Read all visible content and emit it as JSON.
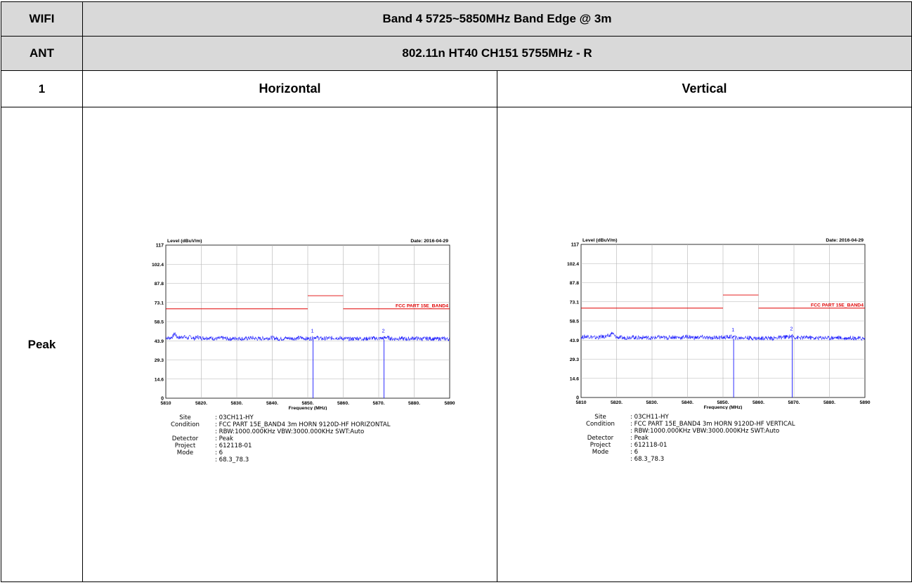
{
  "header": {
    "rows": [
      {
        "label": "WIFI",
        "value": "Band 4 5725~5850MHz Band Edge @ 3m"
      },
      {
        "label": "ANT",
        "value": "802.11n HT40 CH151 5755MHz - R"
      }
    ],
    "col_row": {
      "label": "1",
      "left": "Horizontal",
      "right": "Vertical"
    },
    "detector_row_label": "Peak"
  },
  "chart_data": [
    {
      "type": "line",
      "title": "",
      "ylabel": "Level (dBuV/m)",
      "xlabel": "Frequency (MHz)",
      "date_label": "Date: 2016-04-29",
      "xlim": [
        5810,
        5890
      ],
      "ylim": [
        0,
        117
      ],
      "y_ticks": [
        "0",
        "14.6",
        "29.3",
        "43.9",
        "58.5",
        "73.1",
        "87.8",
        "102.4",
        "117"
      ],
      "x_ticks": [
        "5810",
        "5820.",
        "5830.",
        "5840.",
        "5850.",
        "5860.",
        "5870.",
        "5880.",
        "5890"
      ],
      "limit_line": {
        "name": "FCC PART 15E_BAND4",
        "color": "#e00000",
        "segments": [
          {
            "x": [
              5810,
              5850
            ],
            "y": 68.3
          },
          {
            "x": [
              5850,
              5860
            ],
            "y": 78.3
          },
          {
            "x": [
              5860,
              5890
            ],
            "y": 68.3
          }
        ]
      },
      "trace_color": "#1a1aff",
      "trace": [
        [
          5810,
          46.5
        ],
        [
          5811,
          45.8
        ],
        [
          5812,
          47.2
        ],
        [
          5812.6,
          50.0
        ],
        [
          5813,
          47.0
        ],
        [
          5814,
          46.2
        ],
        [
          5815,
          47.3
        ],
        [
          5816,
          45.8
        ],
        [
          5817,
          46.9
        ],
        [
          5818,
          45.6
        ],
        [
          5819,
          46.8
        ],
        [
          5820,
          45.9
        ],
        [
          5822,
          46.2
        ],
        [
          5824,
          45.4
        ],
        [
          5826,
          46.0
        ],
        [
          5828,
          45.2
        ],
        [
          5830,
          45.9
        ],
        [
          5832,
          45.3
        ],
        [
          5834,
          46.1
        ],
        [
          5836,
          45.4
        ],
        [
          5838,
          45.8
        ],
        [
          5840,
          46.2
        ],
        [
          5842,
          45.3
        ],
        [
          5844,
          45.9
        ],
        [
          5846,
          45.6
        ],
        [
          5848,
          46.1
        ],
        [
          5850,
          45.4
        ],
        [
          5851.5,
          46.0
        ],
        [
          5852,
          46.8
        ],
        [
          5854,
          45.4
        ],
        [
          5856,
          45.8
        ],
        [
          5858,
          46.2
        ],
        [
          5860,
          45.6
        ],
        [
          5862,
          45.2
        ],
        [
          5864,
          45.8
        ],
        [
          5866,
          45.3
        ],
        [
          5868,
          45.9
        ],
        [
          5870,
          45.6
        ],
        [
          5871.5,
          45.9
        ],
        [
          5872,
          46.6
        ],
        [
          5874,
          45.3
        ],
        [
          5876,
          45.7
        ],
        [
          5878,
          45.2
        ],
        [
          5880,
          45.9
        ],
        [
          5882,
          45.3
        ],
        [
          5884,
          45.7
        ],
        [
          5886,
          45.2
        ],
        [
          5888,
          45.6
        ],
        [
          5890,
          45.1
        ]
      ],
      "markers": [
        {
          "label": "1",
          "x": 5851.5,
          "y": 46.0
        },
        {
          "label": "2",
          "x": 5871.5,
          "y": 45.9
        }
      ],
      "info": [
        {
          "key": "Site",
          "value": ": 03CH11-HY"
        },
        {
          "key": "Condition",
          "value": ": FCC PART 15E_BAND4 3m HORN 9120D-HF HORIZONTAL"
        },
        {
          "key": "",
          "value": ": RBW:1000.000KHz VBW:3000.000KHz SWT:Auto"
        },
        {
          "key": "Detector",
          "value": ": Peak"
        },
        {
          "key": "Project",
          "value": ": 612118-01"
        },
        {
          "key": "Mode",
          "value": ": 6"
        },
        {
          "key": "",
          "value": ": 68.3_78.3"
        }
      ]
    },
    {
      "type": "line",
      "title": "",
      "ylabel": "Level (dBuV/m)",
      "xlabel": "Frequency (MHz)",
      "date_label": "Date: 2016-04-29",
      "xlim": [
        5810,
        5890
      ],
      "ylim": [
        0,
        117
      ],
      "y_ticks": [
        "0",
        "14.6",
        "29.3",
        "43.9",
        "58.5",
        "73.1",
        "87.8",
        "102.4",
        "117"
      ],
      "x_ticks": [
        "5810",
        "5820.",
        "5830.",
        "5840.",
        "5850.",
        "5860.",
        "5870.",
        "5880.",
        "5890"
      ],
      "limit_line": {
        "name": "FCC PART 15E_BAND4",
        "color": "#e00000",
        "segments": [
          {
            "x": [
              5810,
              5850
            ],
            "y": 68.3
          },
          {
            "x": [
              5850,
              5860
            ],
            "y": 78.3
          },
          {
            "x": [
              5860,
              5890
            ],
            "y": 68.3
          }
        ]
      },
      "trace_color": "#1a1aff",
      "trace": [
        [
          5810,
          46.0
        ],
        [
          5812,
          46.8
        ],
        [
          5814,
          45.7
        ],
        [
          5816,
          46.4
        ],
        [
          5818,
          47.0
        ],
        [
          5818.8,
          49.5
        ],
        [
          5819.5,
          46.8
        ],
        [
          5820,
          46.1
        ],
        [
          5822,
          45.5
        ],
        [
          5824,
          46.3
        ],
        [
          5826,
          45.6
        ],
        [
          5828,
          46.0
        ],
        [
          5830,
          45.4
        ],
        [
          5832,
          46.1
        ],
        [
          5834,
          45.5
        ],
        [
          5836,
          46.3
        ],
        [
          5838,
          45.7
        ],
        [
          5840,
          46.5
        ],
        [
          5842,
          45.6
        ],
        [
          5844,
          46.2
        ],
        [
          5846,
          45.4
        ],
        [
          5848,
          46.0
        ],
        [
          5850,
          45.8
        ],
        [
          5852,
          46.4
        ],
        [
          5853,
          46.2
        ],
        [
          5854,
          45.3
        ],
        [
          5856,
          45.9
        ],
        [
          5858,
          45.4
        ],
        [
          5860,
          45.1
        ],
        [
          5862,
          45.6
        ],
        [
          5864,
          45.2
        ],
        [
          5866,
          45.8
        ],
        [
          5868,
          46.3
        ],
        [
          5869.5,
          46.9
        ],
        [
          5870,
          46.1
        ],
        [
          5872,
          45.5
        ],
        [
          5874,
          46.0
        ],
        [
          5876,
          45.3
        ],
        [
          5878,
          45.8
        ],
        [
          5880,
          45.4
        ],
        [
          5882,
          45.9
        ],
        [
          5884,
          45.2
        ],
        [
          5886,
          45.7
        ],
        [
          5888,
          45.3
        ],
        [
          5890,
          45.0
        ]
      ],
      "markers": [
        {
          "label": "1",
          "x": 5853,
          "y": 46.2
        },
        {
          "label": "2",
          "x": 5869.5,
          "y": 46.9
        }
      ],
      "info": [
        {
          "key": "Site",
          "value": ": 03CH11-HY"
        },
        {
          "key": "Condition",
          "value": ": FCC PART 15E_BAND4 3m HORN 9120D-HF VERTICAL"
        },
        {
          "key": "",
          "value": ": RBW:1000.000KHz VBW:3000.000KHz SWT:Auto"
        },
        {
          "key": "Detector",
          "value": ": Peak"
        },
        {
          "key": "Project",
          "value": ": 612118-01"
        },
        {
          "key": "Mode",
          "value": ": 6"
        },
        {
          "key": "",
          "value": ": 68.3_78.3"
        }
      ]
    }
  ]
}
